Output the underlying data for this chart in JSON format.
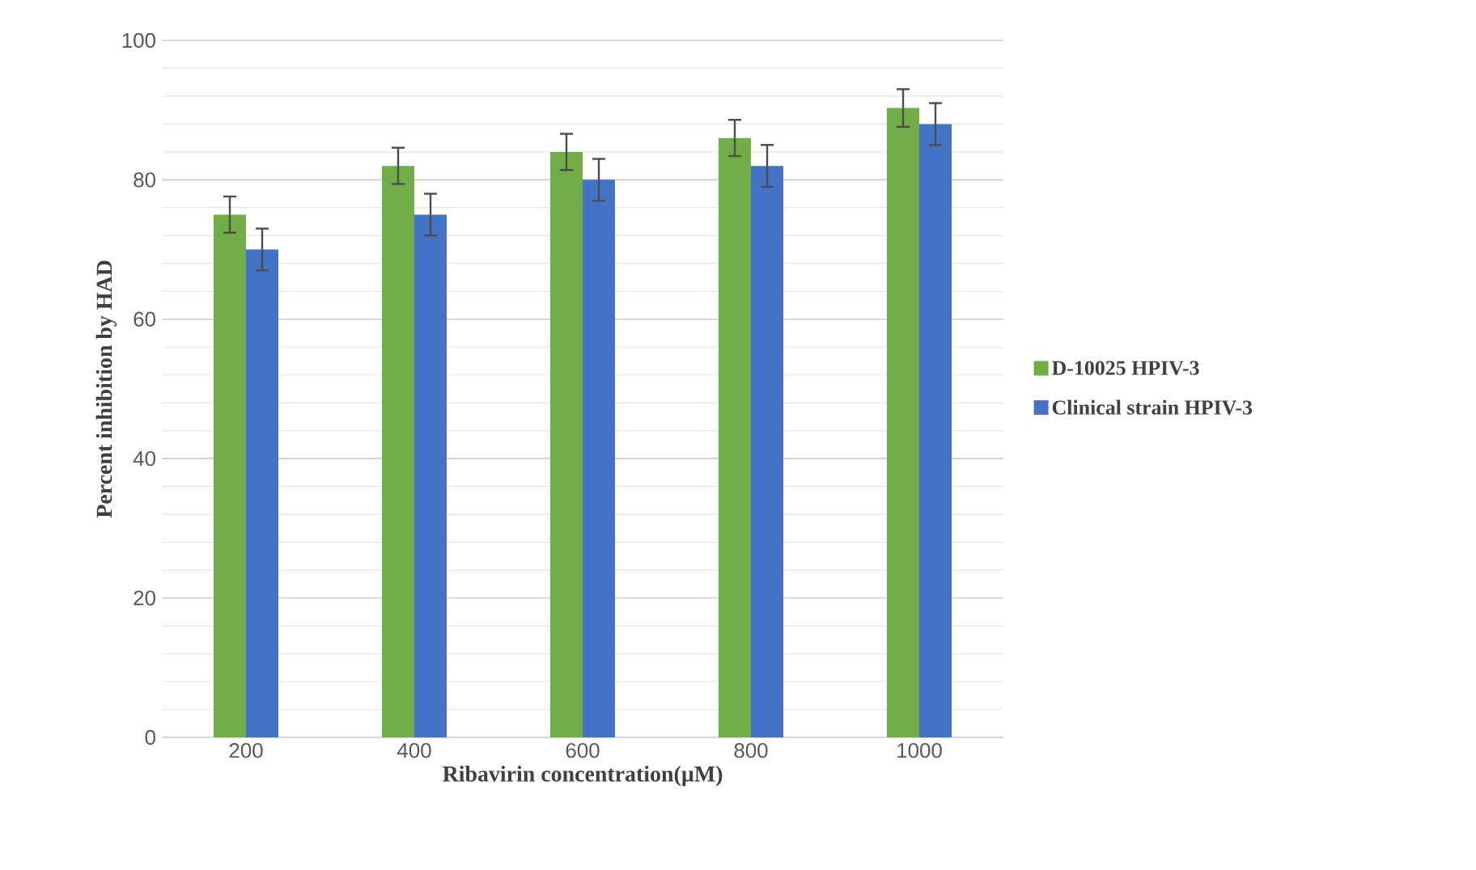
{
  "chart_data": {
    "type": "bar",
    "xlabel": "Ribavirin  concentration(µM)",
    "ylabel": "Percent inhibition by HAD",
    "categories": [
      "200",
      "400",
      "600",
      "800",
      "1000"
    ],
    "series": [
      {
        "name": "D-10025 HPIV-3",
        "color": "#70ad47",
        "values": [
          75,
          82,
          84,
          86,
          90.3
        ],
        "errors": [
          2.6,
          2.6,
          2.6,
          2.6,
          2.7
        ]
      },
      {
        "name": "Clinical strain HPIV-3",
        "color": "#4472c4",
        "values": [
          70,
          75,
          80,
          82,
          88
        ],
        "errors": [
          3,
          3,
          3,
          3,
          3
        ]
      }
    ],
    "ylim": [
      0,
      100
    ],
    "yticks": [
      0,
      20,
      40,
      60,
      80,
      100
    ],
    "grid": "y",
    "legend": "right"
  }
}
